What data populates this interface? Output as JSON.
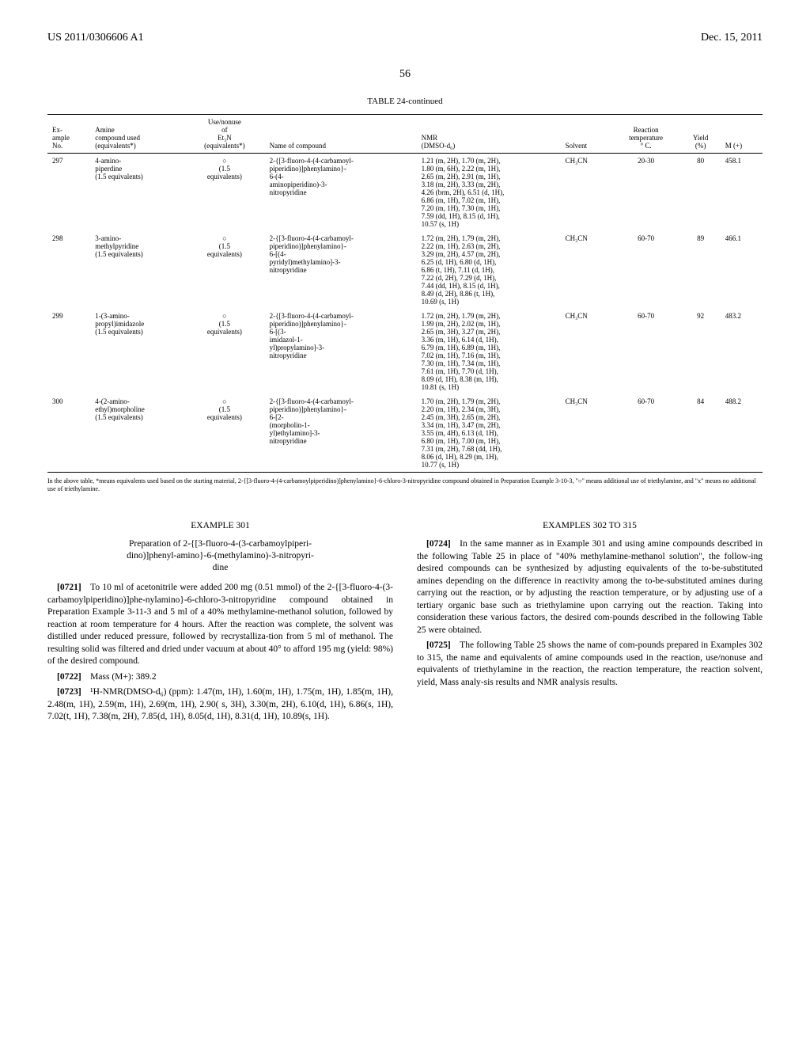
{
  "header": {
    "left": "US 2011/0306606 A1",
    "right": "Dec. 15, 2011"
  },
  "page_number": "56",
  "table": {
    "title": "TABLE 24-continued",
    "columns": [
      "Ex-\nample\nNo.",
      "Amine\ncompound used\n(equivalents*)",
      "Use/nonuse\nof\nEt₃N\n(equivalents*)",
      "Name of compound",
      "NMR\n(DMSO-d₆)",
      "Solvent",
      "Reaction\ntemperature\n° C.",
      "Yield\n(%)",
      "M (+)"
    ],
    "rows": [
      {
        "no": "297",
        "amine": "4-amino-\npiperdine\n(1.5 equivalents)",
        "et3n": "○\n(1.5\nequivalents)",
        "name": "2-{[3-fluoro-4-(4-carbamoyl-\npiperidino)]phenylamino}-\n6-(4-\naminopiperidino)-3-\nnitropyridine",
        "nmr": "1.21 (m, 2H), 1.70 (m, 2H),\n1.80 (m, 6H), 2.22 (m, 1H),\n2.65 (m, 2H), 2.91 (m, 1H),\n3.18 (m, 2H), 3.33 (m, 2H),\n4.26 (brm, 2H), 6.51 (d, 1H),\n6.86 (m, 1H), 7.02 (m, 1H),\n7.20 (m, 1H), 7.30 (m, 1H),\n7.59 (dd, 1H), 8.15 (d, 1H),\n10.57 (s, 1H)",
        "solvent": "CH₃CN",
        "temp": "20-30",
        "yield": "80",
        "m": "458.1"
      },
      {
        "no": "298",
        "amine": "3-amino-\nmethylpyridine\n(1.5 equivalents)",
        "et3n": "○\n(1.5\nequivalents)",
        "name": "2-{[3-fluoro-4-(4-carbamoyl-\npiperidino)]phenylamino}-\n6-[(4-\npyridyl)methylamino]-3-\nnitropyridine",
        "nmr": "1.72 (m, 2H), 1.79 (m, 2H),\n2.22 (m, 1H), 2.63 (m, 2H),\n3.29 (m, 2H), 4.57 (m, 2H),\n6.25 (d, 1H), 6.80 (d, 1H),\n6.86 (t, 1H), 7.11 (d, 1H),\n7.22 (d, 2H), 7.29 (d, 1H),\n7.44 (dd, 1H), 8.15 (d, 1H),\n8.49 (d, 2H), 8.86 (t, 1H),\n10.69 (s, 1H)",
        "solvent": "CH₃CN",
        "temp": "60-70",
        "yield": "89",
        "m": "466.1"
      },
      {
        "no": "299",
        "amine": "1-(3-amino-\npropyl)imidazole\n(1.5 equivalents)",
        "et3n": "○\n(1.5\nequivalents)",
        "name": "2-{[3-fluoro-4-(4-carbamoyl-\npiperidino)]phenylamino}-\n6-[(3-\nimidazol-1-\nyl)propylamino]-3-\nnitropyridine",
        "nmr": "1.72 (m, 2H), 1.79 (m, 2H),\n1.99 (m, 2H), 2.02 (m, 1H),\n2.65 (m, 3H), 3.27 (m, 2H),\n3.36 (m, 1H), 6.14 (d, 1H),\n6.79 (m, 1H), 6.89 (m, 1H),\n7.02 (m, 1H), 7.16 (m, 1H),\n7.30 (m, 1H), 7.34 (m, 1H),\n7.61 (m, 1H), 7.70 (d, 1H),\n8.09 (d, 1H), 8.38 (m, 1H),\n10.81 (s, 1H)",
        "solvent": "CH₃CN",
        "temp": "60-70",
        "yield": "92",
        "m": "483.2"
      },
      {
        "no": "300",
        "amine": "4-(2-amino-\nethyl)morpholine\n(1.5 equivalents)",
        "et3n": "○\n(1.5\nequivalents)",
        "name": "2-{[3-fluoro-4-(4-carbamoyl-\npiperidino)]phenylamino}-\n6-[2-\n(morpholin-1-\nyl)ethylamino]-3-\nnitropyridine",
        "nmr": "1.70 (m, 2H), 1.79 (m, 2H),\n2.20 (m, 1H), 2.34 (m, 3H),\n2.45 (m, 3H), 2.65 (m, 2H),\n3.34 (m, 1H), 3.47 (m, 2H),\n3.55 (m, 4H), 6.13 (d, 1H),\n6.80 (m, 1H), 7.00 (m, 1H),\n7.31 (m, 2H), 7.68 (dd, 1H),\n8.06 (d, 1H), 8.29 (m, 1H),\n10.77 (s, 1H)",
        "solvent": "CH₃CN",
        "temp": "60-70",
        "yield": "84",
        "m": "488.2"
      }
    ],
    "footnote": "In the above table, *means equivalents used based on the starting material, 2-{[3-fluoro-4-(4-carbamoylpiperidino)]phenylamino}-6-chloro-3-nitropyridine compound obtained in Preparation Example 3-10-3, \"○\" means additional use of triethylamine, and \"x\" means no additional use of triethylamine."
  },
  "left_column": {
    "example_header": "EXAMPLE 301",
    "example_subtitle": "Preparation of 2-{[3-fluoro-4-(3-carbamoylpiperi-\ndino)]phenyl-amino}-6-(methylamino)-3-nitropyri-\ndine",
    "paras": [
      {
        "num": "[0721]",
        "text": "To 10 ml of acetonitrile were added 200 mg (0.51 mmol) of the 2-{[3-fluoro-4-(3-carbamoylpiperidino)]phe-nylamino}-6-chloro-3-nitropyridine compound obtained in Preparation Example 3-11-3 and 5 ml of a 40% methylamine-methanol solution, followed by reaction at room temperature for 4 hours. After the reaction was complete, the solvent was distilled under reduced pressure, followed by recrystalliza-tion from 5 ml of methanol. The resulting solid was filtered and dried under vacuum at about 40° to afford 195 mg (yield: 98%) of the desired compound."
      },
      {
        "num": "[0722]",
        "text": "Mass (M+): 389.2"
      },
      {
        "num": "[0723]",
        "text": "¹H-NMR(DMSO-d₆) (ppm): 1.47(m, 1H), 1.60(m, 1H), 1.75(m, 1H), 1.85(m, 1H), 2.48(m, 1H), 2.59(m, 1H), 2.69(m, 1H), 2.90( s, 3H), 3.30(m, 2H), 6.10(d, 1H), 6.86(s, 1H), 7.02(t, 1H), 7.38(m, 2H), 7.85(d, 1H), 8.05(d, 1H), 8.31(d, 1H), 10.89(s, 1H)."
      }
    ]
  },
  "right_column": {
    "example_header": "EXAMPLES 302 TO 315",
    "paras": [
      {
        "num": "[0724]",
        "text": "In the same manner as in Example 301 and using amine compounds described in the following Table 25 in place of \"40% methylamine-methanol solution\", the follow-ing desired compounds can be synthesized by adjusting equivalents of the to-be-substituted amines depending on the difference in reactivity among the to-be-substituted amines during carrying out the reaction, or by adjusting the reaction temperature, or by adjusting use of a tertiary organic base such as triethylamine upon carrying out the reaction. Taking into consideration these various factors, the desired com-pounds described in the following Table 25 were obtained."
      },
      {
        "num": "[0725]",
        "text": "The following Table 25 shows the name of com-pounds prepared in Examples 302 to 315, the name and equivalents of amine compounds used in the reaction, use/nonuse and equivalents of triethylamine in the reaction, the reaction temperature, the reaction solvent, yield, Mass analy-sis results and NMR analysis results."
      }
    ]
  }
}
